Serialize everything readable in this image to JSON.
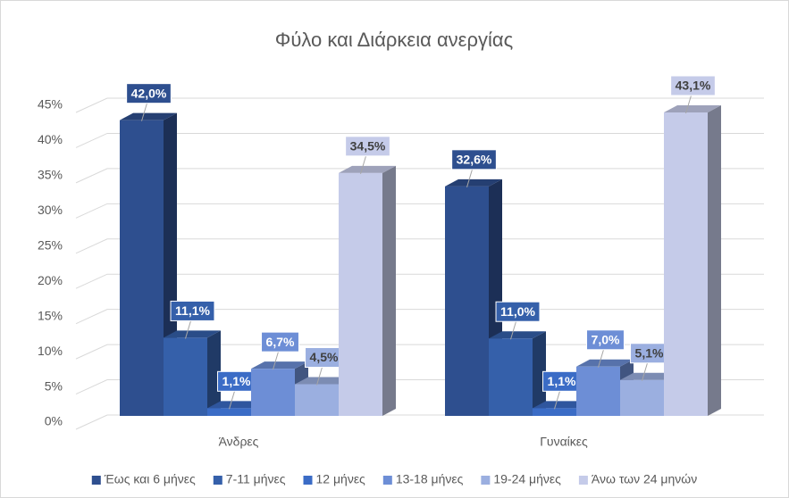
{
  "chart_data": {
    "type": "bar3d",
    "title": "Φύλο και Διάρκεια ανεργίας",
    "categories": [
      "Άνδρες",
      "Γυναίκες"
    ],
    "series": [
      {
        "name": "Έως και 6 μήνες",
        "color": "#2e4f8f",
        "values": [
          42.0,
          32.6
        ],
        "value_labels": [
          "42,0%",
          "32,6%"
        ]
      },
      {
        "name": "7-11 μήνες",
        "color": "#3560aa",
        "values": [
          11.1,
          11.0
        ],
        "value_labels": [
          "11,1%",
          "11,0%"
        ]
      },
      {
        "name": "12 μήνες",
        "color": "#3b6cc6",
        "values": [
          1.1,
          1.1
        ],
        "value_labels": [
          "1,1%",
          "1,1%"
        ]
      },
      {
        "name": "13-18 μήνες",
        "color": "#6d8ed6",
        "values": [
          6.7,
          7.0
        ],
        "value_labels": [
          "6,7%",
          "7,0%"
        ]
      },
      {
        "name": "19-24 μήνες",
        "color": "#9bafe0",
        "values": [
          4.5,
          5.1
        ],
        "value_labels": [
          "4,5%",
          "5,1%"
        ]
      },
      {
        "name": "Άνω των 24 μηνών",
        "color": "#c5cbe9",
        "values": [
          34.5,
          43.1
        ],
        "value_labels": [
          "34,5%",
          "43,1%"
        ]
      }
    ],
    "ylim": [
      0,
      45
    ],
    "yticks": [
      {
        "value": 0,
        "label": "0%"
      },
      {
        "value": 5,
        "label": "5%"
      },
      {
        "value": 10,
        "label": "10%"
      },
      {
        "value": 15,
        "label": "15%"
      },
      {
        "value": 20,
        "label": "20%"
      },
      {
        "value": 25,
        "label": "25%"
      },
      {
        "value": 30,
        "label": "30%"
      },
      {
        "value": 35,
        "label": "35%"
      },
      {
        "value": 40,
        "label": "40%"
      },
      {
        "value": 45,
        "label": "45%"
      }
    ],
    "grid": true,
    "legend": "bottom"
  }
}
